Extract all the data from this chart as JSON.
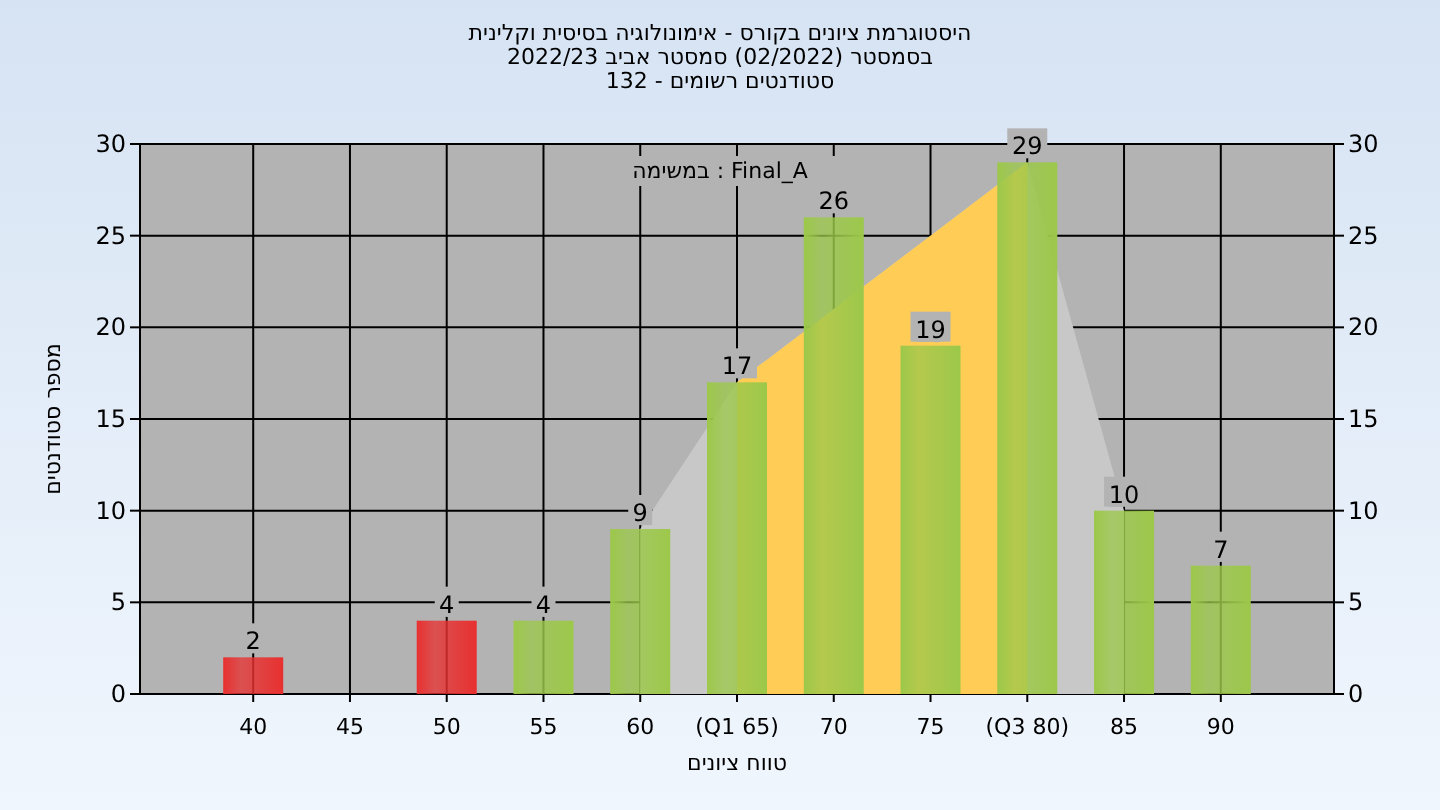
{
  "chart_data": {
    "type": "bar",
    "title": "היסטוגרמת ציונים בקורס - אימונולוגיה בסיסית וקלינית",
    "subtitle": "בסמסטר  (02/2022)  סמסטר אביב 2022/23\nסטודנטים רשומים - 132",
    "xlabel": "טווח ציונים",
    "ylabel": "מספר סטודנטים",
    "annotations": [
      "Final_A : במשימה"
    ],
    "categories": [
      "40",
      "45",
      "50",
      "55",
      "60",
      "(Q1 65)",
      "70",
      "75",
      "(Q3 80)",
      "85",
      "90"
    ],
    "series": [
      {
        "type": "area",
        "color": "#c8c8c8",
        "x": [
          "60",
          "(Q1 65)",
          "75",
          "(Q3 80)",
          "85"
        ],
        "values": [
          9,
          17,
          25,
          29,
          10
        ]
      },
      {
        "type": "area",
        "color": "#ffcc55",
        "x": [
          "(Q1 65)",
          "75",
          "(Q3 80)"
        ],
        "values": [
          17,
          25,
          29
        ]
      },
      {
        "colors": [
          "#e83030",
          "#e83030",
          "#e83030",
          "#9cc84a",
          "#9cc84a",
          "#9cc84a",
          "#9cc84a",
          "#9cc84a",
          "#9cc84a",
          "#9cc84a",
          "#9cc84a"
        ],
        "values": [
          2,
          0,
          4,
          4,
          9,
          17,
          26,
          19,
          29,
          10,
          7
        ],
        "value_labels": [
          "2",
          null,
          "4",
          "4",
          "9",
          "17",
          "26",
          "19",
          "29",
          "10",
          "7"
        ]
      }
    ],
    "ylim": [
      0,
      30
    ],
    "yticks": [
      0,
      5,
      10,
      15,
      20,
      25,
      30
    ],
    "y2lim": [
      0,
      30
    ],
    "y2ticks": [
      0,
      5,
      10,
      15,
      20,
      25,
      30
    ],
    "grid": true
  }
}
